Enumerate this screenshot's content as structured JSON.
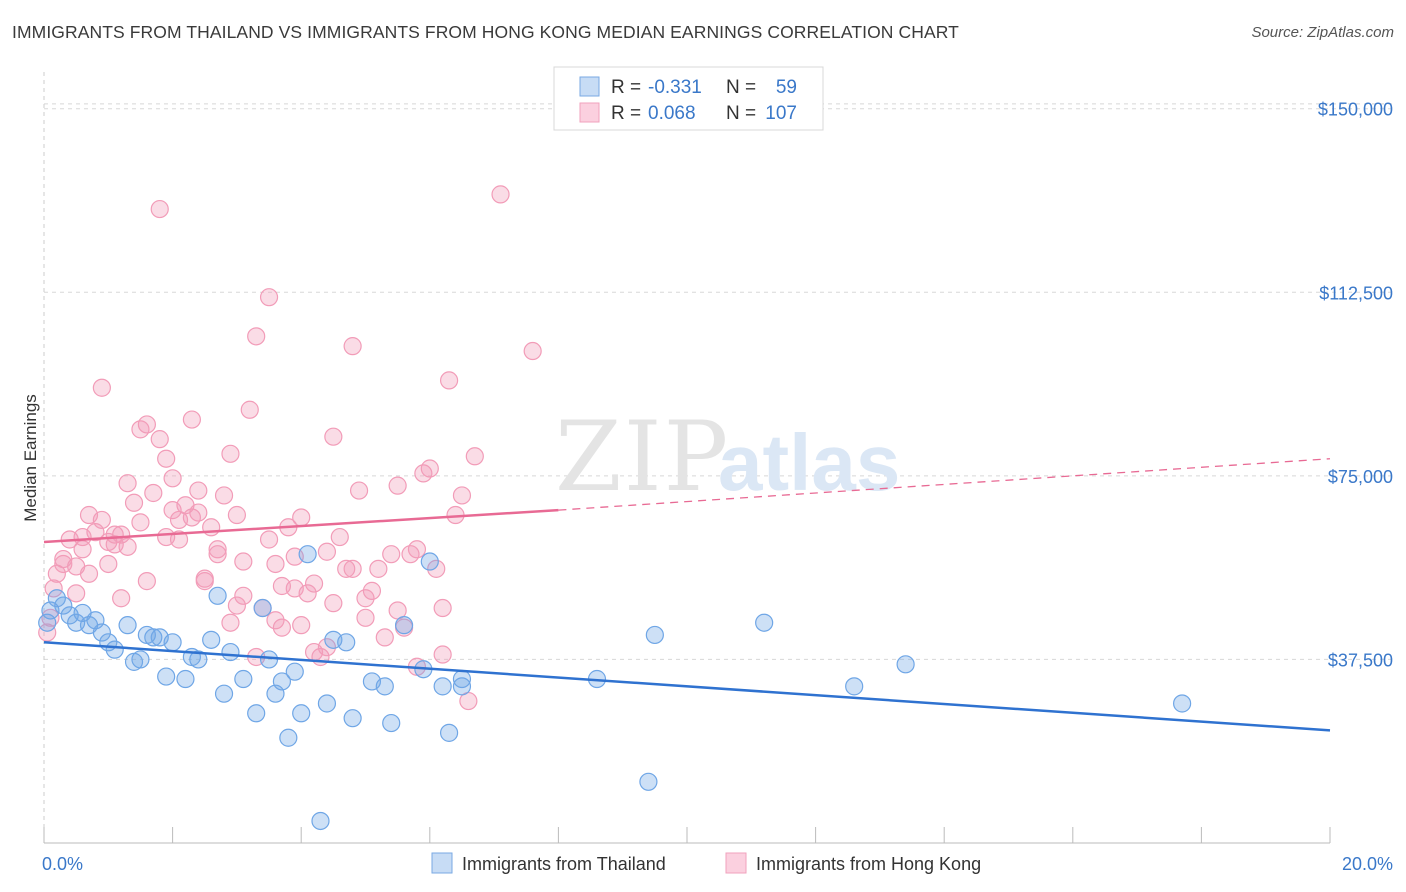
{
  "title": "IMMIGRANTS FROM THAILAND VS IMMIGRANTS FROM HONG KONG MEDIAN EARNINGS CORRELATION CHART",
  "source": "Source: ZipAtlas.com",
  "watermark": {
    "zip": "ZIP",
    "atlas": "atlas"
  },
  "colors": {
    "thailand": "#6fa6e6",
    "thailand_line": "#2f72d0",
    "hongkong": "#f29cb8",
    "hongkong_line": "#e86a94",
    "tick": "#3a78c9",
    "grid": "#d8d8d8"
  },
  "chart_data": {
    "type": "scatter",
    "title": "IMMIGRANTS FROM THAILAND VS IMMIGRANTS FROM HONG KONG MEDIAN EARNINGS CORRELATION CHART",
    "xlabel": "",
    "ylabel": "Median Earnings",
    "xlim": [
      0,
      20
    ],
    "ylim": [
      0,
      157500
    ],
    "x_tick_labels": [
      "0.0%",
      "20.0%"
    ],
    "y_ticks": [
      37500,
      75000,
      112500,
      150000
    ],
    "y_tick_labels": [
      "$37,500",
      "$75,000",
      "$112,500",
      "$150,000"
    ],
    "grid": true,
    "legend_position": "top-center",
    "stats": [
      {
        "r_label": "R =",
        "r_value": "-0.331",
        "n_label": "N =",
        "n_value": "59"
      },
      {
        "r_label": "R =",
        "r_value": "0.068",
        "n_label": "N =",
        "n_value": "107"
      }
    ],
    "series": [
      {
        "name": "Immigrants from Thailand",
        "trend": {
          "x": [
            0,
            20
          ],
          "y": [
            41000,
            23000
          ]
        },
        "points": [
          [
            0.05,
            45000
          ],
          [
            0.1,
            47500
          ],
          [
            0.2,
            50000
          ],
          [
            0.3,
            48500
          ],
          [
            0.4,
            46500
          ],
          [
            0.5,
            45000
          ],
          [
            0.6,
            47000
          ],
          [
            0.7,
            44500
          ],
          [
            0.8,
            45500
          ],
          [
            0.9,
            43000
          ],
          [
            1.0,
            41000
          ],
          [
            1.1,
            39500
          ],
          [
            1.3,
            44500
          ],
          [
            1.4,
            37000
          ],
          [
            1.5,
            37500
          ],
          [
            1.6,
            42500
          ],
          [
            1.7,
            42000
          ],
          [
            1.8,
            42000
          ],
          [
            1.9,
            34000
          ],
          [
            2.0,
            41000
          ],
          [
            2.2,
            33500
          ],
          [
            2.3,
            38000
          ],
          [
            2.4,
            37500
          ],
          [
            2.6,
            41500
          ],
          [
            2.7,
            50500
          ],
          [
            2.8,
            30500
          ],
          [
            2.9,
            39000
          ],
          [
            3.1,
            33500
          ],
          [
            3.3,
            26500
          ],
          [
            3.4,
            48000
          ],
          [
            3.5,
            37500
          ],
          [
            3.6,
            30500
          ],
          [
            3.7,
            33000
          ],
          [
            3.8,
            21500
          ],
          [
            3.9,
            35000
          ],
          [
            4.0,
            26500
          ],
          [
            4.1,
            59000
          ],
          [
            4.3,
            4500
          ],
          [
            4.4,
            28500
          ],
          [
            4.5,
            41500
          ],
          [
            4.7,
            41000
          ],
          [
            4.8,
            25500
          ],
          [
            5.1,
            33000
          ],
          [
            5.3,
            32000
          ],
          [
            5.4,
            24500
          ],
          [
            5.6,
            44500
          ],
          [
            5.9,
            35500
          ],
          [
            6.0,
            57500
          ],
          [
            6.2,
            32000
          ],
          [
            6.3,
            22500
          ],
          [
            6.5,
            33500
          ],
          [
            6.5,
            32000
          ],
          [
            8.6,
            33500
          ],
          [
            9.4,
            12500
          ],
          [
            9.5,
            42500
          ],
          [
            11.2,
            45000
          ],
          [
            12.6,
            32000
          ],
          [
            13.4,
            36500
          ],
          [
            17.7,
            28500
          ]
        ]
      },
      {
        "name": "Immigrants from Hong Kong",
        "trend": {
          "x": [
            0,
            8
          ],
          "y": [
            61500,
            68000
          ]
        },
        "trend_extension": {
          "x": [
            8,
            20
          ],
          "y": [
            68000,
            78500
          ]
        },
        "points": [
          [
            0.05,
            43000
          ],
          [
            0.1,
            46000
          ],
          [
            0.15,
            52000
          ],
          [
            0.2,
            55000
          ],
          [
            0.3,
            58000
          ],
          [
            0.4,
            62000
          ],
          [
            0.5,
            56500
          ],
          [
            0.6,
            60000
          ],
          [
            0.7,
            55000
          ],
          [
            0.8,
            63500
          ],
          [
            0.9,
            66000
          ],
          [
            1.0,
            61500
          ],
          [
            1.1,
            61000
          ],
          [
            1.2,
            63000
          ],
          [
            1.3,
            73500
          ],
          [
            1.4,
            69500
          ],
          [
            1.5,
            65500
          ],
          [
            1.6,
            85500
          ],
          [
            1.7,
            71500
          ],
          [
            1.8,
            82500
          ],
          [
            1.9,
            78500
          ],
          [
            2.0,
            74500
          ],
          [
            2.1,
            62000
          ],
          [
            2.2,
            69000
          ],
          [
            2.3,
            66500
          ],
          [
            2.4,
            67500
          ],
          [
            2.5,
            53500
          ],
          [
            2.6,
            64500
          ],
          [
            2.7,
            59000
          ],
          [
            2.8,
            71000
          ],
          [
            2.9,
            79500
          ],
          [
            3.0,
            67000
          ],
          [
            3.1,
            50500
          ],
          [
            3.2,
            88500
          ],
          [
            3.3,
            103500
          ],
          [
            3.4,
            48000
          ],
          [
            3.5,
            111500
          ],
          [
            3.6,
            57000
          ],
          [
            3.7,
            44000
          ],
          [
            3.8,
            64500
          ],
          [
            3.9,
            58500
          ],
          [
            4.0,
            44500
          ],
          [
            4.1,
            51000
          ],
          [
            4.2,
            53000
          ],
          [
            4.3,
            38000
          ],
          [
            4.4,
            40000
          ],
          [
            4.5,
            83000
          ],
          [
            4.6,
            62500
          ],
          [
            4.7,
            56000
          ],
          [
            4.8,
            101500
          ],
          [
            4.9,
            72000
          ],
          [
            5.0,
            46000
          ],
          [
            5.1,
            51500
          ],
          [
            5.2,
            56000
          ],
          [
            5.3,
            42000
          ],
          [
            5.4,
            59000
          ],
          [
            5.5,
            47500
          ],
          [
            5.6,
            44000
          ],
          [
            5.7,
            59000
          ],
          [
            5.8,
            36000
          ],
          [
            5.9,
            75500
          ],
          [
            6.0,
            76500
          ],
          [
            6.1,
            56000
          ],
          [
            6.2,
            38500
          ],
          [
            6.3,
            94500
          ],
          [
            6.4,
            67000
          ],
          [
            6.5,
            71000
          ],
          [
            6.6,
            29000
          ],
          [
            6.7,
            79000
          ],
          [
            1.8,
            129500
          ],
          [
            7.1,
            132500
          ],
          [
            7.6,
            100500
          ],
          [
            0.9,
            93000
          ],
          [
            1.5,
            84500
          ],
          [
            2.3,
            86500
          ],
          [
            0.7,
            67000
          ],
          [
            1.3,
            60500
          ],
          [
            1.9,
            62500
          ],
          [
            2.5,
            54000
          ],
          [
            3.0,
            48500
          ],
          [
            3.3,
            38000
          ],
          [
            3.6,
            45500
          ],
          [
            3.9,
            52000
          ],
          [
            4.2,
            39000
          ],
          [
            4.5,
            49000
          ],
          [
            4.8,
            56000
          ],
          [
            1.0,
            57000
          ],
          [
            1.2,
            50000
          ],
          [
            0.5,
            51000
          ],
          [
            0.3,
            57000
          ],
          [
            2.7,
            60000
          ],
          [
            3.1,
            57500
          ],
          [
            3.5,
            62000
          ],
          [
            4.0,
            66500
          ],
          [
            5.5,
            73000
          ],
          [
            0.6,
            62500
          ],
          [
            1.6,
            53500
          ],
          [
            2.0,
            68000
          ],
          [
            2.4,
            72000
          ],
          [
            2.9,
            45000
          ],
          [
            3.7,
            52500
          ],
          [
            4.4,
            59500
          ],
          [
            5.0,
            50000
          ],
          [
            5.8,
            60000
          ],
          [
            6.2,
            48000
          ],
          [
            1.1,
            63000
          ],
          [
            2.1,
            66000
          ]
        ]
      }
    ]
  },
  "legend": {
    "thailand": "Immigrants from Thailand",
    "hongkong": "Immigrants from Hong Kong"
  }
}
